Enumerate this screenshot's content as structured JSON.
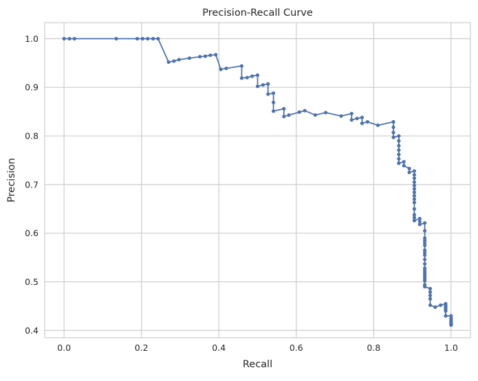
{
  "chart_data": {
    "type": "line",
    "title": "Precision-Recall Curve",
    "xlabel": "Recall",
    "ylabel": "Precision",
    "xlim": [
      -0.05,
      1.05
    ],
    "ylim": [
      0.385,
      1.033
    ],
    "xticks": [
      "0.0",
      "0.2",
      "0.4",
      "0.6",
      "0.8",
      "1.0"
    ],
    "yticks": [
      "0.4",
      "0.5",
      "0.6",
      "0.7",
      "0.8",
      "0.9",
      "1.0"
    ],
    "grid": true,
    "marker": "circle",
    "colors": {
      "line": "#4c72b0",
      "grid": "#cccccc",
      "frame": "#cccccc",
      "background": "#ffffff"
    },
    "series": [
      {
        "x": [
          0.0,
          0.014,
          0.027,
          0.135,
          0.189,
          0.203,
          0.216,
          0.23,
          0.243,
          0.27,
          0.284,
          0.297,
          0.324,
          0.351,
          0.365,
          0.378,
          0.392,
          0.405,
          0.419,
          0.459,
          0.459,
          0.473,
          0.486,
          0.5,
          0.5,
          0.514,
          0.527,
          0.527,
          0.541,
          0.541,
          0.541,
          0.568,
          0.568,
          0.581,
          0.608,
          0.622,
          0.649,
          0.676,
          0.716,
          0.743,
          0.743,
          0.757,
          0.77,
          0.77,
          0.784,
          0.811,
          0.851,
          0.851,
          0.851,
          0.851,
          0.865,
          0.865,
          0.865,
          0.865,
          0.865,
          0.865,
          0.865,
          0.865,
          0.878,
          0.878,
          0.892,
          0.892,
          0.905,
          0.905,
          0.905,
          0.905,
          0.905,
          0.905,
          0.905,
          0.905,
          0.905,
          0.905,
          0.905,
          0.905,
          0.905,
          0.905,
          0.905,
          0.919,
          0.919,
          0.919,
          0.932,
          0.932,
          0.932,
          0.932,
          0.932,
          0.932,
          0.932,
          0.932,
          0.932,
          0.932,
          0.932,
          0.932,
          0.932,
          0.932,
          0.932,
          0.932,
          0.932,
          0.932,
          0.932,
          0.932,
          0.946,
          0.946,
          0.946,
          0.946,
          0.946,
          0.959,
          0.973,
          0.986,
          0.986,
          0.986,
          0.986,
          0.986,
          0.986,
          0.986,
          1.0,
          1.0,
          1.0,
          1.0,
          1.0,
          1.0,
          1.0
        ],
        "y": [
          1.0,
          1.0,
          1.0,
          1.0,
          1.0,
          1.0,
          1.0,
          1.0,
          1.0,
          0.952,
          0.954,
          0.957,
          0.96,
          0.963,
          0.964,
          0.966,
          0.967,
          0.937,
          0.939,
          0.944,
          0.919,
          0.92,
          0.923,
          0.925,
          0.902,
          0.905,
          0.907,
          0.886,
          0.888,
          0.869,
          0.851,
          0.856,
          0.84,
          0.843,
          0.849,
          0.852,
          0.843,
          0.848,
          0.841,
          0.846,
          0.833,
          0.836,
          0.838,
          0.826,
          0.829,
          0.822,
          0.829,
          0.818,
          0.807,
          0.797,
          0.8,
          0.79,
          0.78,
          0.771,
          0.762,
          0.753,
          0.744,
          0.744,
          0.747,
          0.739,
          0.733,
          0.725,
          0.728,
          0.72,
          0.713,
          0.705,
          0.698,
          0.691,
          0.684,
          0.677,
          0.67,
          0.663,
          0.65,
          0.638,
          0.632,
          0.626,
          0.626,
          0.63,
          0.624,
          0.618,
          0.621,
          0.605,
          0.59,
          0.585,
          0.58,
          0.575,
          0.565,
          0.56,
          0.555,
          0.546,
          0.537,
          0.528,
          0.523,
          0.519,
          0.514,
          0.51,
          0.506,
          0.502,
          0.494,
          0.49,
          0.486,
          0.479,
          0.472,
          0.465,
          0.452,
          0.448,
          0.452,
          0.455,
          0.452,
          0.449,
          0.446,
          0.443,
          0.44,
          0.43,
          0.43,
          0.425,
          0.421,
          0.418,
          0.415,
          0.413,
          0.411
        ]
      }
    ]
  }
}
